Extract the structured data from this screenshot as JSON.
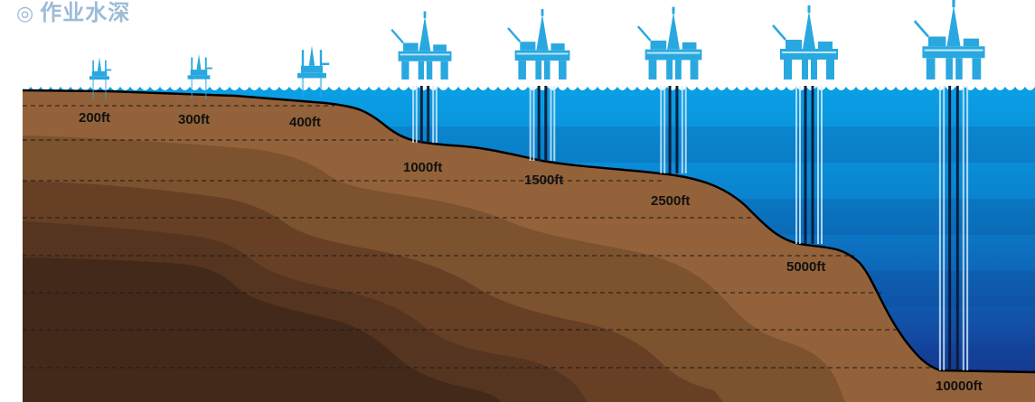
{
  "title": {
    "bullet": "◎",
    "text": "作业水深"
  },
  "colors": {
    "title": "#9dbbd6",
    "rig": "#29a8e0",
    "water_top": "#0aa0e6",
    "water_bottom": "#1b2c8a",
    "seabed_line": "#000000",
    "soil_layers": [
      "#93623a",
      "#7c522f",
      "#663f25",
      "#55351f",
      "#43291a"
    ]
  },
  "depths": [
    {
      "label": "200ft",
      "rig_type": "jackup-rig-icon"
    },
    {
      "label": "300ft",
      "rig_type": "jackup-rig-icon"
    },
    {
      "label": "400ft",
      "rig_type": "jackup-rig-icon"
    },
    {
      "label": "1000ft",
      "rig_type": "semisubmersible-rig-icon"
    },
    {
      "label": "1500ft",
      "rig_type": "semisubmersible-rig-icon"
    },
    {
      "label": "2500ft",
      "rig_type": "semisubmersible-rig-icon"
    },
    {
      "label": "5000ft",
      "rig_type": "semisubmersible-rig-icon"
    },
    {
      "label": "10000ft",
      "rig_type": "semisubmersible-rig-icon"
    }
  ]
}
